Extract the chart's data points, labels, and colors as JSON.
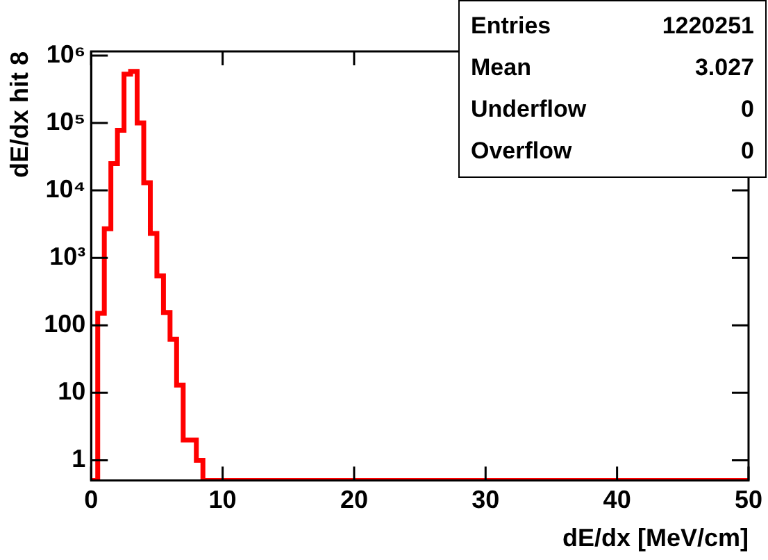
{
  "chart_data": {
    "type": "histogram",
    "xlabel": "dE/dx [MeV/cm]",
    "ylabel": "dE/dx hit 8",
    "bins": [
      0,
      0.5,
      1,
      1.5,
      2,
      2.5,
      3,
      3.5,
      4,
      4.5,
      5,
      5.5,
      6,
      6.5,
      7,
      7.5,
      8,
      8.5,
      9,
      9.5,
      10,
      10.5,
      11,
      11.5,
      12,
      12.5,
      13,
      13.5,
      14,
      14.5,
      15,
      15.5,
      16,
      16.5,
      17,
      17.5,
      18,
      18.5,
      19,
      19.5,
      20,
      20.5,
      21,
      21.5,
      22,
      22.5,
      23,
      23.5,
      24,
      24.5,
      25,
      25.5,
      26,
      26.5,
      27,
      27.5,
      28,
      28.5,
      29,
      29.5,
      30,
      30.5,
      31,
      31.5,
      32,
      32.5,
      33,
      33.5,
      34,
      34.5,
      35,
      35.5,
      36,
      36.5,
      37,
      37.5,
      38,
      38.5,
      39,
      39.5,
      40,
      40.5,
      41,
      41.5,
      42,
      42.5,
      43,
      43.5,
      44,
      44.5,
      45,
      45.5,
      46,
      46.5,
      47,
      47.5,
      48,
      48.5,
      49,
      49.5,
      50
    ],
    "values": [
      null,
      150,
      2700,
      25000,
      78000,
      530000,
      580000,
      100000,
      13000,
      2300,
      540,
      155,
      62,
      13,
      2,
      2,
      1,
      null,
      null,
      null,
      null,
      null,
      null,
      null,
      null,
      null,
      null,
      null,
      null,
      null,
      null,
      null,
      null,
      null,
      null,
      null,
      null,
      null,
      null,
      null,
      null,
      null,
      null,
      null,
      null,
      null,
      null,
      null,
      null,
      null,
      null,
      null,
      null,
      null,
      null,
      null,
      null,
      null,
      null,
      null,
      null,
      null,
      null,
      null,
      null,
      null,
      null,
      null,
      null,
      null,
      null,
      null,
      null,
      null,
      null,
      null,
      null,
      null,
      null,
      null,
      null,
      null,
      null,
      null,
      null,
      null,
      null,
      null,
      null,
      null,
      null,
      null,
      null,
      null,
      null,
      null,
      null,
      null,
      null,
      null
    ],
    "color": "#ff0000",
    "log": "y",
    "grid": false,
    "legend": false,
    "xlim": [
      0,
      50
    ],
    "xticks": [
      0,
      10,
      20,
      30,
      40,
      50
    ],
    "ylim": [
      0.5,
      1150000
    ],
    "yticks": [
      1,
      10,
      100,
      {
        "value": 1000,
        "label": "10³"
      },
      {
        "value": 10000,
        "label": "10⁴"
      },
      {
        "value": 100000,
        "label": "10⁵"
      },
      {
        "value": 1000000,
        "label": "10⁶"
      }
    ],
    "annotations": [
      "Entries 1220251",
      "Mean 3.027",
      "Underflow 0",
      "Overflow 0"
    ]
  }
}
